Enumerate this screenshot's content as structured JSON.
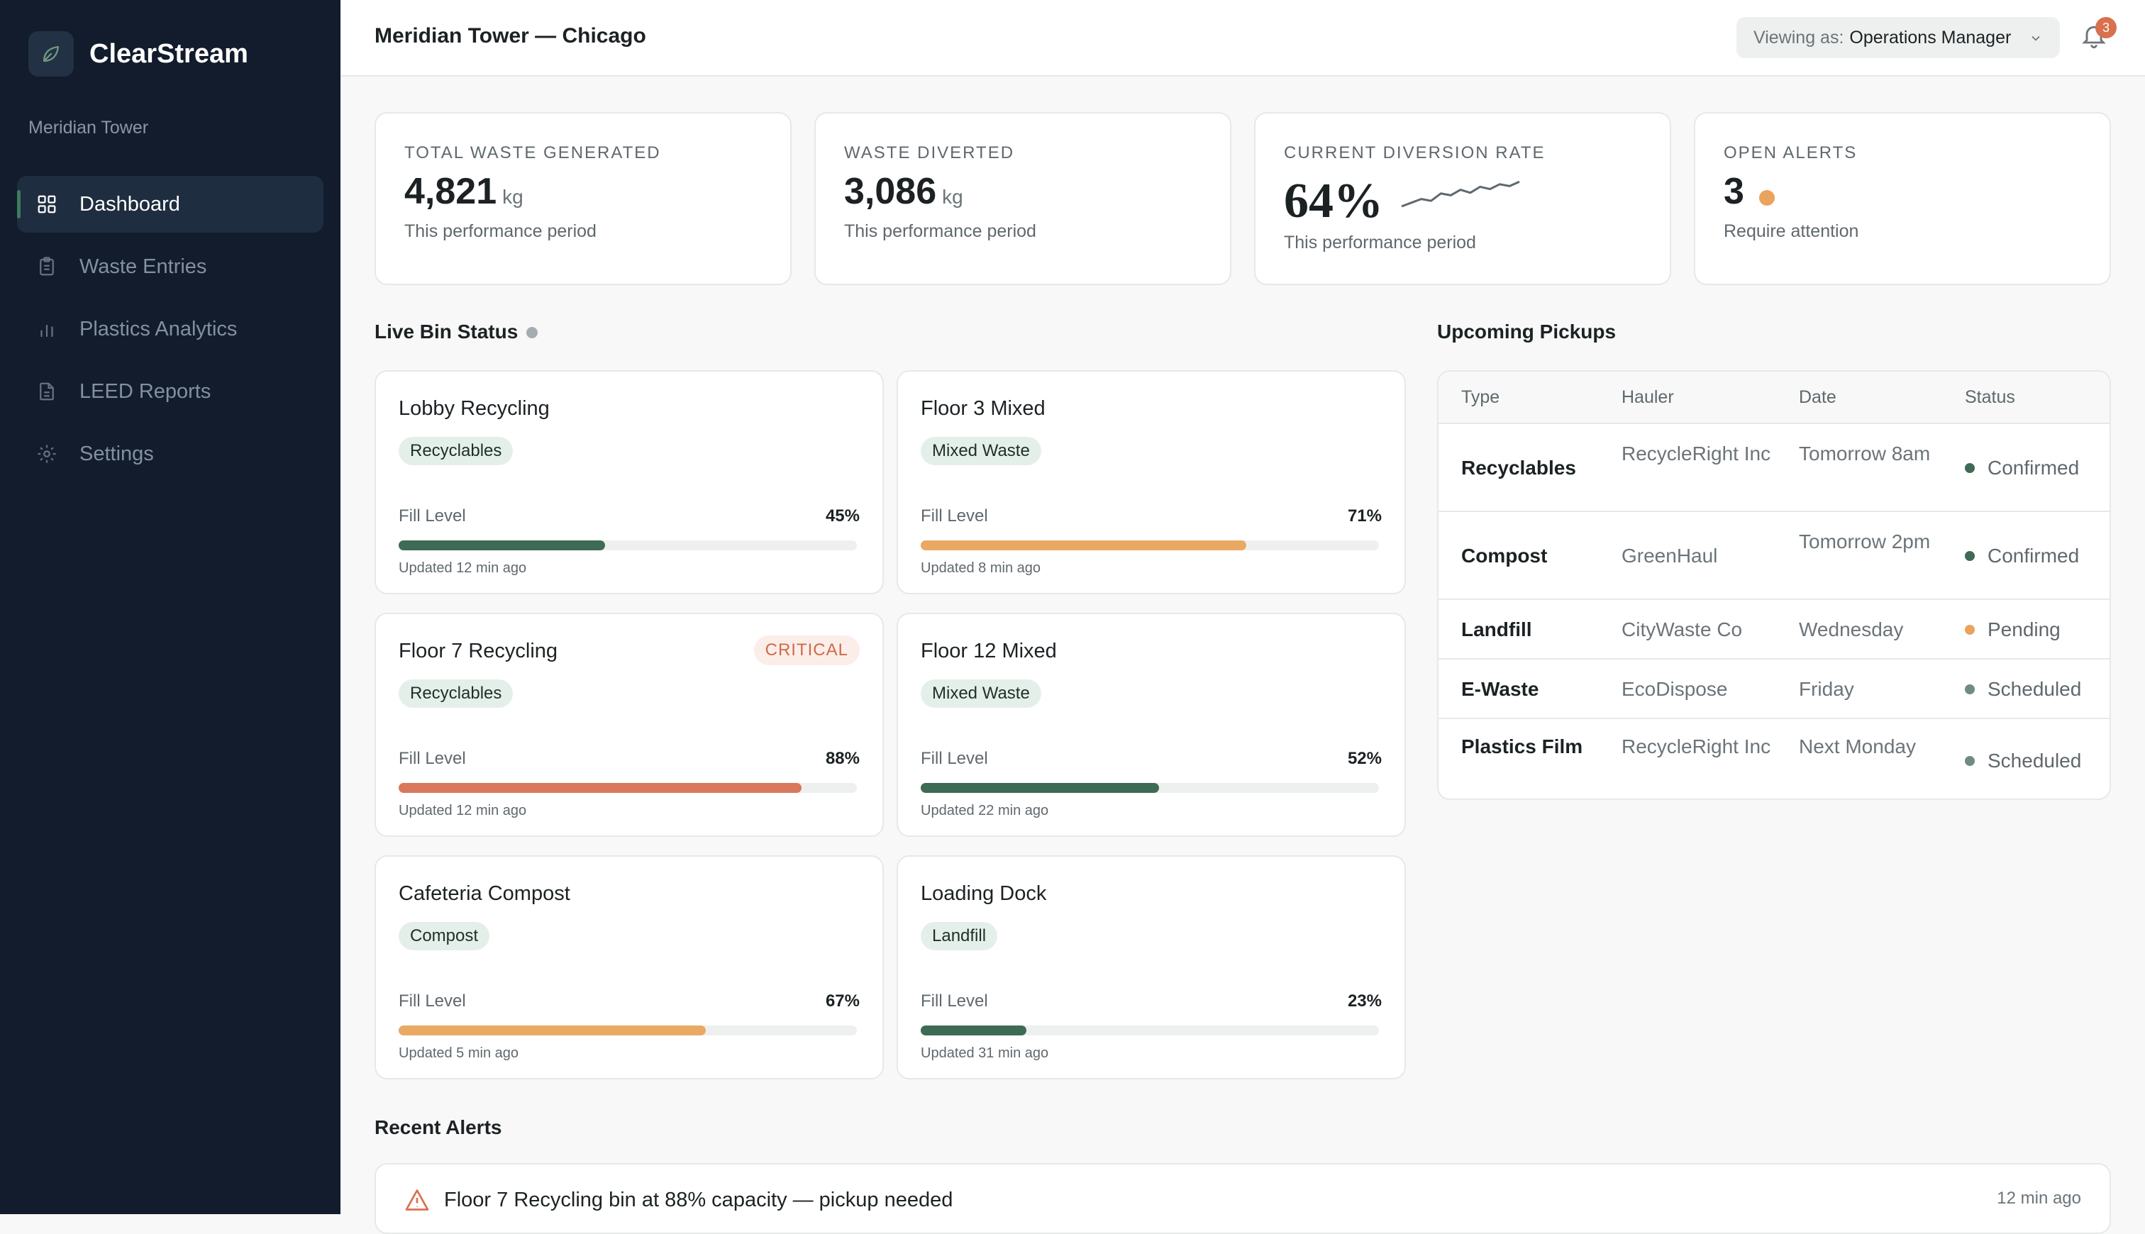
{
  "app": {
    "name": "ClearStream",
    "logo_icon": "leaf-icon",
    "org": "Meridian Tower"
  },
  "nav": {
    "items": [
      {
        "label": "Dashboard",
        "icon": "grid-icon",
        "active": true
      },
      {
        "label": "Waste Entries",
        "icon": "clipboard-icon",
        "active": false
      },
      {
        "label": "Plastics Analytics",
        "icon": "bar-chart-icon",
        "active": false
      },
      {
        "label": "LEED Reports",
        "icon": "document-icon",
        "active": false
      },
      {
        "label": "Settings",
        "icon": "gear-icon",
        "active": false
      }
    ]
  },
  "header": {
    "title": "Meridian Tower — Chicago",
    "viewing_label": "Viewing as:",
    "viewing_value": "Operations Manager",
    "notifications": "3"
  },
  "stats": {
    "total": {
      "label": "TOTAL WASTE GENERATED",
      "value": "4,821",
      "unit": "kg",
      "sub": "This performance period"
    },
    "diverted": {
      "label": "WASTE DIVERTED",
      "value": "3,086",
      "unit": "kg",
      "sub": "This performance period"
    },
    "rate": {
      "label": "CURRENT DIVERSION RATE",
      "value": "64%",
      "sub": "This performance period",
      "trend": [
        0.25,
        0.35,
        0.45,
        0.4,
        0.6,
        0.55,
        0.7,
        0.62,
        0.78,
        0.72,
        0.85,
        0.8,
        0.92
      ]
    },
    "alerts": {
      "label": "OPEN ALERTS",
      "value": "3",
      "sub": "Require attention"
    }
  },
  "live_bins": {
    "title": "Live Bin Status",
    "fill_label": "Fill Level",
    "bins": [
      {
        "name": "Lobby Recycling",
        "tag": "Recyclables",
        "pct_label": "45%",
        "fill": 0.45,
        "color": "#3d6b55",
        "updated": "Updated 12 min ago",
        "critical": ""
      },
      {
        "name": "Floor 3 Mixed",
        "tag": "Mixed Waste",
        "pct_label": "71%",
        "fill": 0.71,
        "color": "#e9a963",
        "updated": "Updated 8 min ago",
        "critical": ""
      },
      {
        "name": "Floor 7 Recycling",
        "tag": "Recyclables",
        "pct_label": "88%",
        "fill": 0.88,
        "color": "#d9785a",
        "updated": "Updated 12 min ago",
        "critical": "CRITICAL"
      },
      {
        "name": "Floor 12 Mixed",
        "tag": "Mixed Waste",
        "pct_label": "52%",
        "fill": 0.52,
        "color": "#3d6b55",
        "updated": "Updated 22 min ago",
        "critical": ""
      },
      {
        "name": "Cafeteria Compost",
        "tag": "Compost",
        "pct_label": "67%",
        "fill": 0.67,
        "color": "#e9a963",
        "updated": "Updated 5 min ago",
        "critical": ""
      },
      {
        "name": "Loading Dock",
        "tag": "Landfill",
        "pct_label": "23%",
        "fill": 0.23,
        "color": "#3d6b55",
        "updated": "Updated 31 min ago",
        "critical": ""
      }
    ]
  },
  "pickups": {
    "title": "Upcoming Pickups",
    "columns": [
      "Type",
      "Hauler",
      "Date",
      "Status"
    ],
    "rows": [
      {
        "type": "Recyclables",
        "hauler": "RecycleRight Inc",
        "date": "Tomorrow 8am",
        "status": "Confirmed",
        "status_color": "#3d6b55"
      },
      {
        "type": "Compost",
        "hauler": "GreenHaul",
        "date": "Tomorrow 2pm",
        "status": "Confirmed",
        "status_color": "#3d6b55"
      },
      {
        "type": "Landfill",
        "hauler": "CityWaste Co",
        "date": "Wednesday",
        "status": "Pending",
        "status_color": "#e9a35c"
      },
      {
        "type": "E-Waste",
        "hauler": "EcoDispose",
        "date": "Friday",
        "status": "Scheduled",
        "status_color": "#6f8c7e"
      },
      {
        "type": "Plastics Film",
        "hauler": "RecycleRight Inc",
        "date": "Next Monday",
        "status": "Scheduled",
        "status_color": "#6f8c7e"
      }
    ]
  },
  "recent_alerts": {
    "title": "Recent Alerts",
    "items": [
      {
        "text": "Floor 7 Recycling bin at 88% capacity — pickup needed",
        "time": "12 min ago",
        "icon": "warning-icon"
      }
    ]
  }
}
